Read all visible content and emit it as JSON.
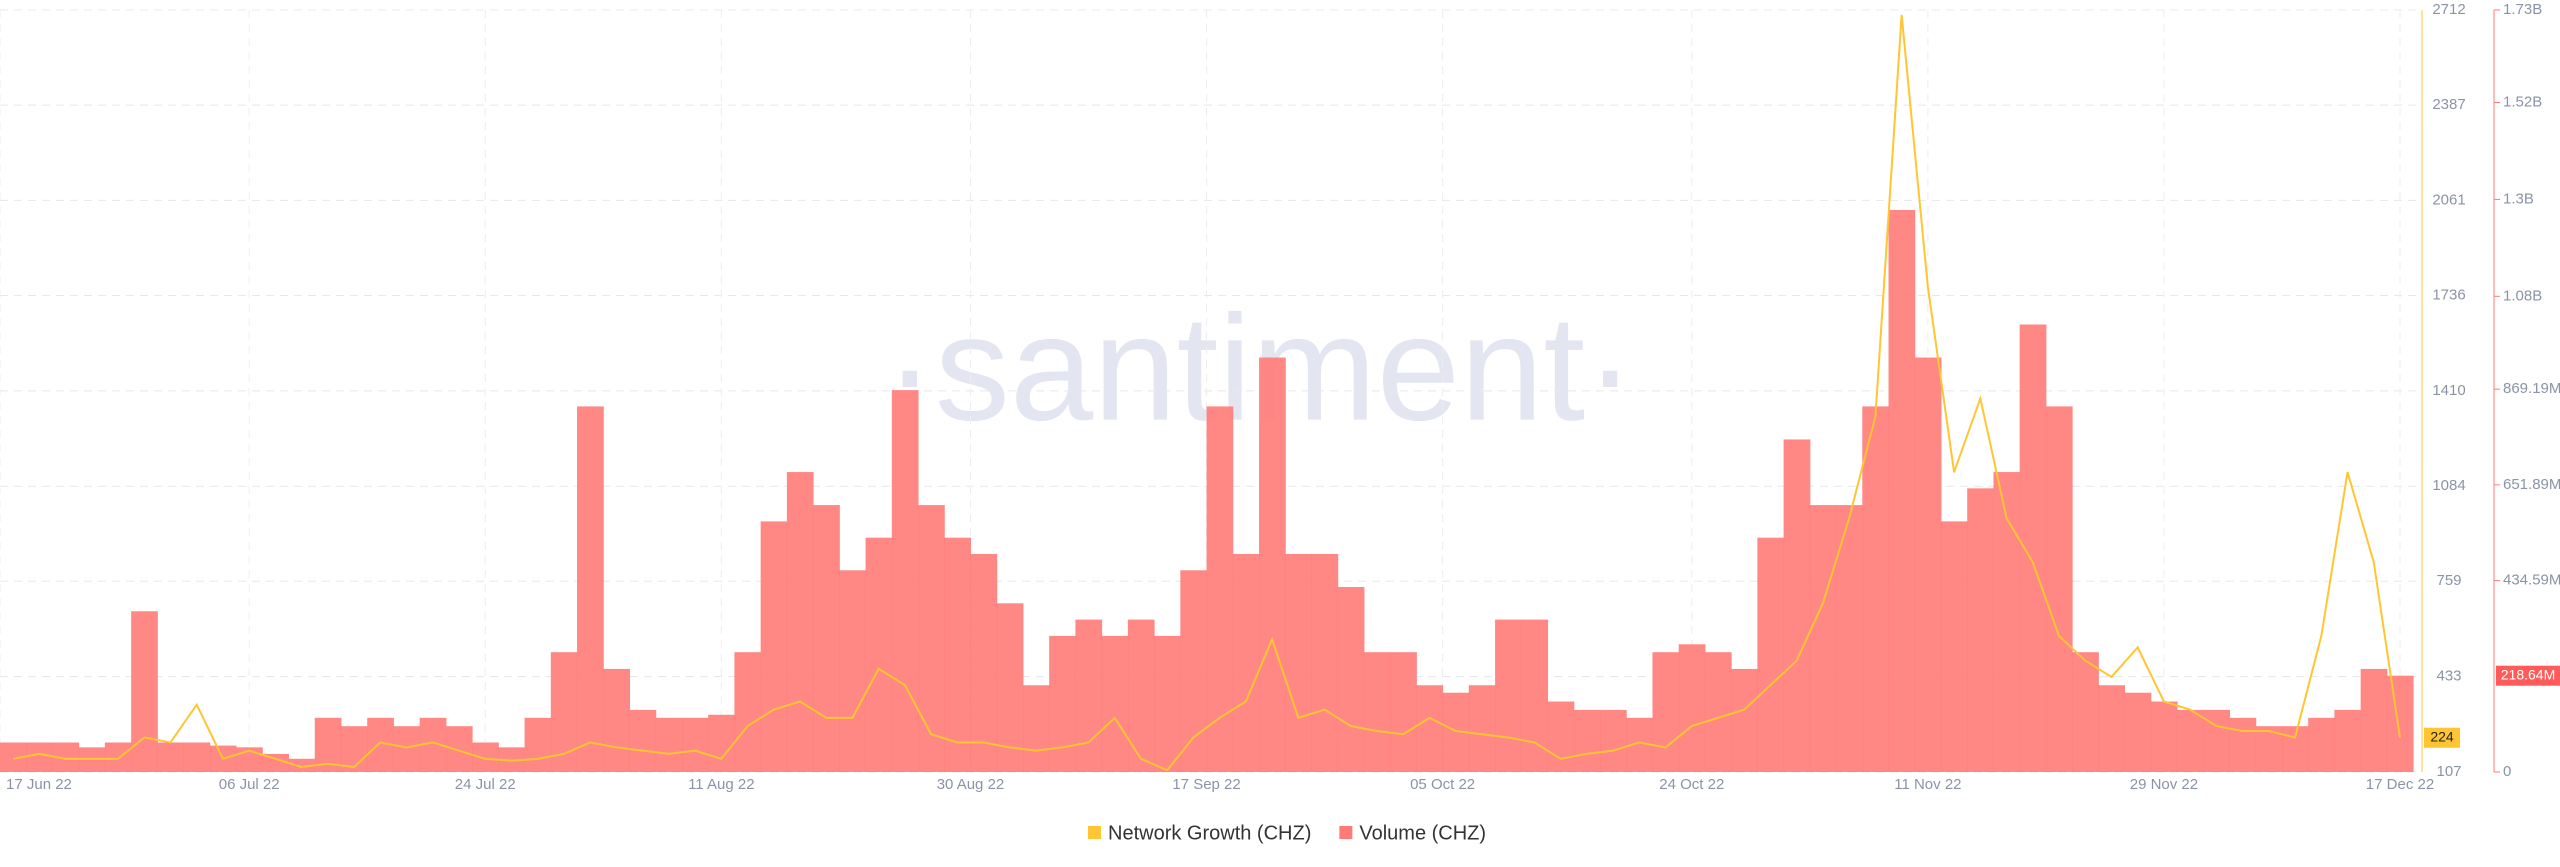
{
  "chart_data": {
    "type": "bar-line",
    "watermark": "·santiment·",
    "x": [
      "2022-06-17",
      "2022-06-19",
      "2022-06-21",
      "2022-06-23",
      "2022-06-25",
      "2022-06-27",
      "2022-06-29",
      "2022-07-01",
      "2022-07-03",
      "2022-07-05",
      "2022-07-07",
      "2022-07-09",
      "2022-07-11",
      "2022-07-13",
      "2022-07-15",
      "2022-07-17",
      "2022-07-19",
      "2022-07-21",
      "2022-07-23",
      "2022-07-25",
      "2022-07-27",
      "2022-07-29",
      "2022-07-31",
      "2022-08-02",
      "2022-08-04",
      "2022-08-06",
      "2022-08-08",
      "2022-08-10",
      "2022-08-12",
      "2022-08-14",
      "2022-08-16",
      "2022-08-18",
      "2022-08-20",
      "2022-08-22",
      "2022-08-24",
      "2022-08-26",
      "2022-08-28",
      "2022-08-30",
      "2022-09-01",
      "2022-09-03",
      "2022-09-05",
      "2022-09-07",
      "2022-09-09",
      "2022-09-11",
      "2022-09-13",
      "2022-09-15",
      "2022-09-17",
      "2022-09-19",
      "2022-09-21",
      "2022-09-23",
      "2022-09-25",
      "2022-09-27",
      "2022-09-29",
      "2022-10-01",
      "2022-10-03",
      "2022-10-05",
      "2022-10-07",
      "2022-10-09",
      "2022-10-11",
      "2022-10-13",
      "2022-10-15",
      "2022-10-17",
      "2022-10-19",
      "2022-10-21",
      "2022-10-23",
      "2022-10-25",
      "2022-10-27",
      "2022-10-29",
      "2022-10-31",
      "2022-11-02",
      "2022-11-04",
      "2022-11-06",
      "2022-11-08",
      "2022-11-10",
      "2022-11-12",
      "2022-11-14",
      "2022-11-16",
      "2022-11-18",
      "2022-11-20",
      "2022-11-22",
      "2022-11-24",
      "2022-11-26",
      "2022-11-28",
      "2022-11-30",
      "2022-12-02",
      "2022-12-04",
      "2022-12-06",
      "2022-12-08",
      "2022-12-10",
      "2022-12-12",
      "2022-12-14",
      "2022-12-16"
    ],
    "xlim": [
      "2022-06-17",
      "2022-12-17"
    ],
    "xticks": [
      {
        "value": "2022-06-17",
        "label": "17 Jun 22"
      },
      {
        "value": "2022-07-06",
        "label": "06 Jul 22"
      },
      {
        "value": "2022-07-24",
        "label": "24 Jul 22"
      },
      {
        "value": "2022-08-11",
        "label": "11 Aug 22"
      },
      {
        "value": "2022-08-30",
        "label": "30 Aug 22"
      },
      {
        "value": "2022-09-17",
        "label": "17 Sep 22"
      },
      {
        "value": "2022-10-05",
        "label": "05 Oct 22"
      },
      {
        "value": "2022-10-24",
        "label": "24 Oct 22"
      },
      {
        "value": "2022-11-11",
        "label": "11 Nov 22"
      },
      {
        "value": "2022-11-29",
        "label": "29 Nov 22"
      },
      {
        "value": "2022-12-17",
        "label": "17 Dec 22"
      }
    ],
    "ylim": [
      107,
      2712
    ],
    "yticks": [
      107,
      433,
      759,
      1084,
      1410,
      1736,
      2061,
      2387,
      2712
    ],
    "y2lim": [
      0,
      1730000000
    ],
    "y2ticks": [
      0,
      {
        "value": 434590000,
        "label": "434.59M"
      },
      {
        "value": 651890000,
        "label": "651.89M"
      },
      {
        "value": 869190000,
        "label": "869.19M"
      },
      {
        "value": 1080000000,
        "label": "1.08B"
      },
      {
        "value": 1300000000,
        "label": "1.3B"
      },
      {
        "value": 1520000000,
        "label": "1.52B"
      },
      {
        "value": 1730000000,
        "label": "1.73B"
      }
    ],
    "grid": true,
    "legend": "bottom",
    "series": [
      {
        "name": "Network Growth (CHZ)",
        "kind": "line",
        "color": "#ffc532",
        "current_label": "224",
        "values": [
          152,
          169,
          152,
          152,
          152,
          225,
          208,
          337,
          152,
          180,
          152,
          124,
          135,
          124,
          208,
          191,
          208,
          180,
          152,
          146,
          152,
          169,
          208,
          191,
          180,
          169,
          180,
          152,
          264,
          320,
          348,
          292,
          292,
          460,
          404,
          236,
          208,
          208,
          191,
          180,
          191,
          208,
          292,
          152,
          113,
          225,
          292,
          348,
          561,
          292,
          320,
          264,
          247,
          236,
          292,
          247,
          236,
          225,
          208,
          152,
          169,
          180,
          208,
          191,
          264,
          292,
          320,
          404,
          488,
          684,
          975,
          1322,
          2695,
          1765,
          1132,
          1384,
          975,
          824,
          572,
          488,
          432,
          533,
          348,
          320,
          264,
          247,
          247,
          225,
          572,
          1132,
          824,
          224
        ]
      },
      {
        "name": "Volume (CHZ)",
        "kind": "bar",
        "axis": "y2",
        "color": "#ff7b78",
        "current_label": "218.64M",
        "values": [
          67000000,
          67000000,
          67000000,
          56000000,
          67000000,
          365000000,
          67000000,
          67000000,
          60000000,
          56000000,
          41000000,
          30000000,
          123000000,
          104000000,
          123000000,
          104000000,
          123000000,
          104000000,
          67000000,
          56000000,
          123000000,
          272000000,
          830000000,
          234000000,
          141000000,
          123000000,
          123000000,
          130000000,
          272000000,
          569000000,
          681000000,
          606000000,
          458000000,
          532000000,
          867000000,
          606000000,
          532000000,
          495000000,
          383000000,
          197000000,
          309000000,
          346000000,
          309000000,
          346000000,
          309000000,
          458000000,
          830000000,
          495000000,
          941000000,
          495000000,
          495000000,
          420000000,
          272000000,
          272000000,
          197000000,
          180000000,
          197000000,
          346000000,
          346000000,
          160000000,
          141000000,
          141000000,
          123000000,
          272000000,
          290000000,
          272000000,
          234000000,
          532000000,
          755000000,
          606000000,
          606000000,
          830000000,
          1276000000,
          941000000,
          569000000,
          644000000,
          681000000,
          1016000000,
          830000000,
          272000000,
          197000000,
          180000000,
          160000000,
          141000000,
          141000000,
          123000000,
          104000000,
          104000000,
          123000000,
          141000000,
          234000000,
          218640000
        ]
      }
    ]
  }
}
